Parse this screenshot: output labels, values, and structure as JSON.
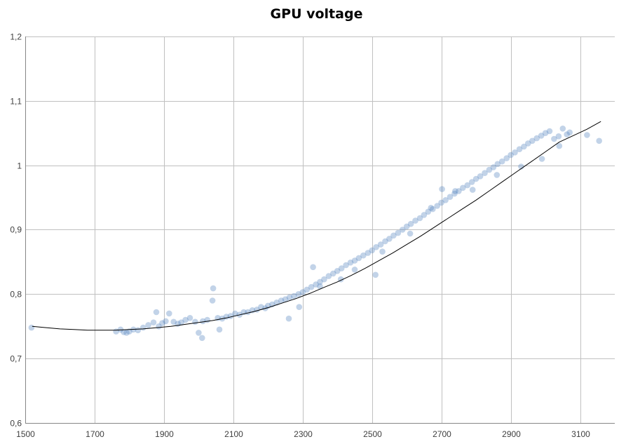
{
  "chart_data": {
    "type": "scatter",
    "title": "GPU voltage",
    "xlabel": "",
    "ylabel": "",
    "xlim": [
      1500,
      3200
    ],
    "ylim": [
      0.6,
      1.2
    ],
    "x_ticks": [
      1500,
      1700,
      1900,
      2100,
      2300,
      2500,
      2700,
      2900,
      3100
    ],
    "x_tick_labels": [
      "1500",
      "1700",
      "1900",
      "2100",
      "2300",
      "2500",
      "2700",
      "2900",
      "3100"
    ],
    "y_ticks": [
      0.6,
      0.7,
      0.8,
      0.9,
      1.0,
      1.1,
      1.2
    ],
    "y_tick_labels": [
      "0,6",
      "0,7",
      "0,8",
      "0,9",
      "1",
      "1,1",
      "1,2"
    ],
    "grid": true,
    "legend": "none",
    "colors": {
      "points": "#4f81bd",
      "trendline": "#000000",
      "grid": "#c0c0c0"
    },
    "series": [
      {
        "name": "GPU voltage",
        "kind": "scatter",
        "x": [
          1518,
          1762,
          1775,
          1784,
          1792,
          1800,
          1812,
          1825,
          1840,
          1855,
          1870,
          1878,
          1885,
          1895,
          1905,
          1915,
          1928,
          1940,
          1950,
          1962,
          1975,
          1990,
          2000,
          2012,
          2025,
          2040,
          2042,
          2055,
          2068,
          2080,
          2092,
          2105,
          2118,
          2130,
          2142,
          2155,
          2168,
          2180,
          2192,
          2200,
          2212,
          2225,
          2238,
          2250,
          2262,
          2275,
          2288,
          2300,
          2312,
          2325,
          2338,
          2350,
          2362,
          2375,
          2388,
          2400,
          2412,
          2425,
          2438,
          2450,
          2462,
          2475,
          2488,
          2500,
          2512,
          2525,
          2538,
          2550,
          2562,
          2575,
          2588,
          2600,
          2612,
          2625,
          2638,
          2650,
          2662,
          2675,
          2688,
          2700,
          2702,
          2712,
          2725,
          2738,
          2750,
          2762,
          2775,
          2788,
          2800,
          2812,
          2825,
          2838,
          2850,
          2862,
          2875,
          2888,
          2900,
          2912,
          2925,
          2938,
          2950,
          2962,
          2975,
          2988,
          3000,
          3012,
          3025,
          3038,
          3050,
          3062,
          3070,
          3120,
          3155,
          2510,
          2410,
          2330,
          2060,
          2010,
          2260,
          2290,
          2350,
          2450,
          2530,
          2610,
          2670,
          2740,
          2790,
          2860,
          2930,
          2990,
          3040
        ],
        "y": [
          0.748,
          0.742,
          0.745,
          0.741,
          0.74,
          0.742,
          0.745,
          0.744,
          0.748,
          0.752,
          0.756,
          0.772,
          0.75,
          0.755,
          0.758,
          0.77,
          0.757,
          0.754,
          0.756,
          0.76,
          0.763,
          0.757,
          0.74,
          0.758,
          0.76,
          0.79,
          0.809,
          0.763,
          0.762,
          0.765,
          0.766,
          0.77,
          0.768,
          0.772,
          0.772,
          0.775,
          0.776,
          0.78,
          0.778,
          0.782,
          0.784,
          0.787,
          0.79,
          0.792,
          0.795,
          0.797,
          0.8,
          0.803,
          0.807,
          0.811,
          0.815,
          0.819,
          0.823,
          0.828,
          0.832,
          0.836,
          0.84,
          0.845,
          0.849,
          0.852,
          0.856,
          0.86,
          0.864,
          0.868,
          0.873,
          0.877,
          0.882,
          0.886,
          0.891,
          0.895,
          0.9,
          0.905,
          0.909,
          0.914,
          0.918,
          0.923,
          0.928,
          0.932,
          0.937,
          0.942,
          0.963,
          0.946,
          0.951,
          0.956,
          0.96,
          0.965,
          0.969,
          0.974,
          0.979,
          0.983,
          0.988,
          0.993,
          0.997,
          1.002,
          1.006,
          1.011,
          1.016,
          1.02,
          1.025,
          1.029,
          1.034,
          1.038,
          1.042,
          1.046,
          1.05,
          1.053,
          1.041,
          1.045,
          1.057,
          1.048,
          1.051,
          1.047,
          1.038,
          0.83,
          0.823,
          0.842,
          0.745,
          0.732,
          0.762,
          0.78,
          0.812,
          0.838,
          0.866,
          0.894,
          0.934,
          0.96,
          0.962,
          0.985,
          0.998,
          1.01,
          1.03
        ]
      },
      {
        "name": "Trendline",
        "kind": "line",
        "x": [
          1520,
          1560,
          1600,
          1640,
          1680,
          1720,
          1760,
          1800,
          1840,
          1880,
          1920,
          1960,
          2000,
          2040,
          2080,
          2120,
          2160,
          2200,
          2240,
          2280,
          2320,
          2360,
          2400,
          2440,
          2480,
          2520,
          2560,
          2600,
          2640,
          2680,
          2720,
          2760,
          2800,
          2840,
          2880,
          2920,
          2960,
          3000,
          3040,
          3080,
          3120,
          3160
        ],
        "y": [
          0.75,
          0.748,
          0.746,
          0.745,
          0.744,
          0.744,
          0.744,
          0.745,
          0.746,
          0.748,
          0.75,
          0.753,
          0.756,
          0.759,
          0.763,
          0.768,
          0.773,
          0.779,
          0.786,
          0.793,
          0.801,
          0.81,
          0.819,
          0.829,
          0.84,
          0.852,
          0.864,
          0.877,
          0.89,
          0.904,
          0.918,
          0.932,
          0.946,
          0.961,
          0.976,
          0.991,
          1.006,
          1.021,
          1.036,
          1.046,
          1.056,
          1.068
        ]
      }
    ]
  }
}
